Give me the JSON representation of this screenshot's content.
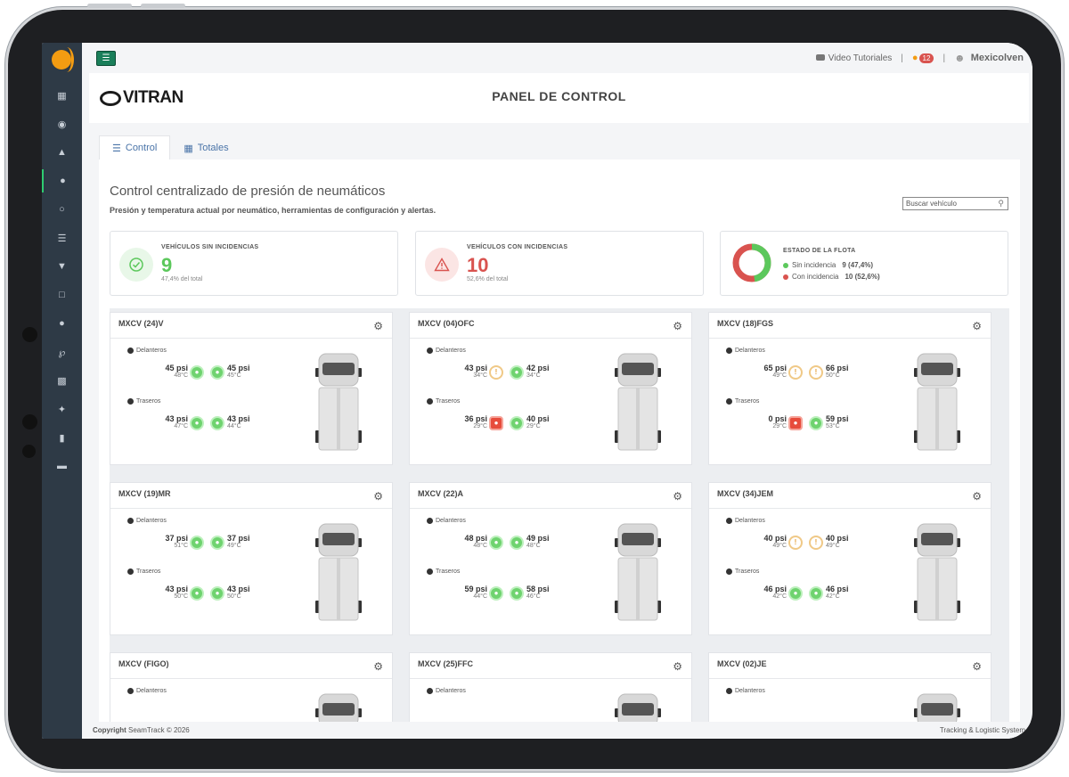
{
  "topbar": {
    "tutorials_label": "Video Tutoriales",
    "notif_count": "12",
    "user_name": "Mexicolven",
    "separator": "|"
  },
  "header": {
    "brand": "VITRAN",
    "title": "PANEL DE CONTROL"
  },
  "tabs": [
    {
      "label": "Control",
      "icon": "list-icon",
      "active": true
    },
    {
      "label": "Totales",
      "icon": "calculator-icon",
      "active": false
    }
  ],
  "panel": {
    "title": "Control centralizado de presión de neumáticos",
    "subtitle": "Presión y temperatura actual por neumático, herramientas de configuración y alertas.",
    "search_placeholder": "Buscar vehículo"
  },
  "stats": {
    "ok": {
      "label": "VEHÍCULOS SIN INCIDENCIAS",
      "value": "9",
      "foot": "47,4% del total",
      "color": "#5cc85c"
    },
    "bad": {
      "label": "VEHÍCULOS CON INCIDENCIAS",
      "value": "10",
      "foot": "52,6% del total",
      "color": "#d9534f"
    },
    "fleet": {
      "label": "ESTADO DE LA FLOTA",
      "rows": [
        {
          "name": "Sin incidencia",
          "value": "9 (47,4%)",
          "color": "#5cc85c",
          "fraction": 0.474
        },
        {
          "name": "Con incidencia",
          "value": "10 (52,6%)",
          "color": "#d9534f",
          "fraction": 0.526
        }
      ]
    }
  },
  "labels": {
    "front": "Delanteros",
    "rear": "Traseros"
  },
  "vehicles": [
    {
      "name": "MXCV (24)V",
      "front": [
        {
          "psi": "45 psi",
          "temp": "48°C",
          "status": "ok"
        },
        {
          "psi": "45 psi",
          "temp": "45°C",
          "status": "ok"
        }
      ],
      "rear": [
        {
          "psi": "43 psi",
          "temp": "47°C",
          "status": "ok"
        },
        {
          "psi": "43 psi",
          "temp": "44°C",
          "status": "ok"
        }
      ]
    },
    {
      "name": "MXCV (04)OFC",
      "front": [
        {
          "psi": "43 psi",
          "temp": "34°C",
          "status": "warn"
        },
        {
          "psi": "42 psi",
          "temp": "34°C",
          "status": "ok"
        }
      ],
      "rear": [
        {
          "psi": "36 psi",
          "temp": "29°C",
          "status": "bad"
        },
        {
          "psi": "40 psi",
          "temp": "29°C",
          "status": "ok"
        }
      ]
    },
    {
      "name": "MXCV (18)FGS",
      "front": [
        {
          "psi": "65 psi",
          "temp": "49°C",
          "status": "warn"
        },
        {
          "psi": "66 psi",
          "temp": "50°C",
          "status": "warn"
        }
      ],
      "rear": [
        {
          "psi": "0 psi",
          "temp": "29°C",
          "status": "bad"
        },
        {
          "psi": "59 psi",
          "temp": "53°C",
          "status": "ok"
        }
      ]
    },
    {
      "name": "MXCV (19)MR",
      "front": [
        {
          "psi": "37 psi",
          "temp": "51°C",
          "status": "ok"
        },
        {
          "psi": "37 psi",
          "temp": "49°C",
          "status": "ok"
        }
      ],
      "rear": [
        {
          "psi": "43 psi",
          "temp": "50°C",
          "status": "ok"
        },
        {
          "psi": "43 psi",
          "temp": "50°C",
          "status": "ok"
        }
      ]
    },
    {
      "name": "MXCV (22)A",
      "front": [
        {
          "psi": "48 psi",
          "temp": "48°C",
          "status": "ok"
        },
        {
          "psi": "49 psi",
          "temp": "48°C",
          "status": "ok"
        }
      ],
      "rear": [
        {
          "psi": "59 psi",
          "temp": "44°C",
          "status": "ok"
        },
        {
          "psi": "58 psi",
          "temp": "46°C",
          "status": "ok"
        }
      ]
    },
    {
      "name": "MXCV (34)JEM",
      "front": [
        {
          "psi": "40 psi",
          "temp": "49°C",
          "status": "warn"
        },
        {
          "psi": "40 psi",
          "temp": "49°C",
          "status": "warn"
        }
      ],
      "rear": [
        {
          "psi": "46 psi",
          "temp": "42°C",
          "status": "ok"
        },
        {
          "psi": "46 psi",
          "temp": "42°C",
          "status": "ok"
        }
      ]
    },
    {
      "name": "MXCV (FIGO)",
      "front": [],
      "rear": []
    },
    {
      "name": "MXCV (25)FFC",
      "front": [],
      "rear": []
    },
    {
      "name": "MXCV (02)JE",
      "front": [],
      "rear": []
    }
  ],
  "footer": {
    "copyright_bold": "Copyright",
    "copyright_rest": "SeamTrack © 2026",
    "right": "Tracking & Logistic System"
  }
}
